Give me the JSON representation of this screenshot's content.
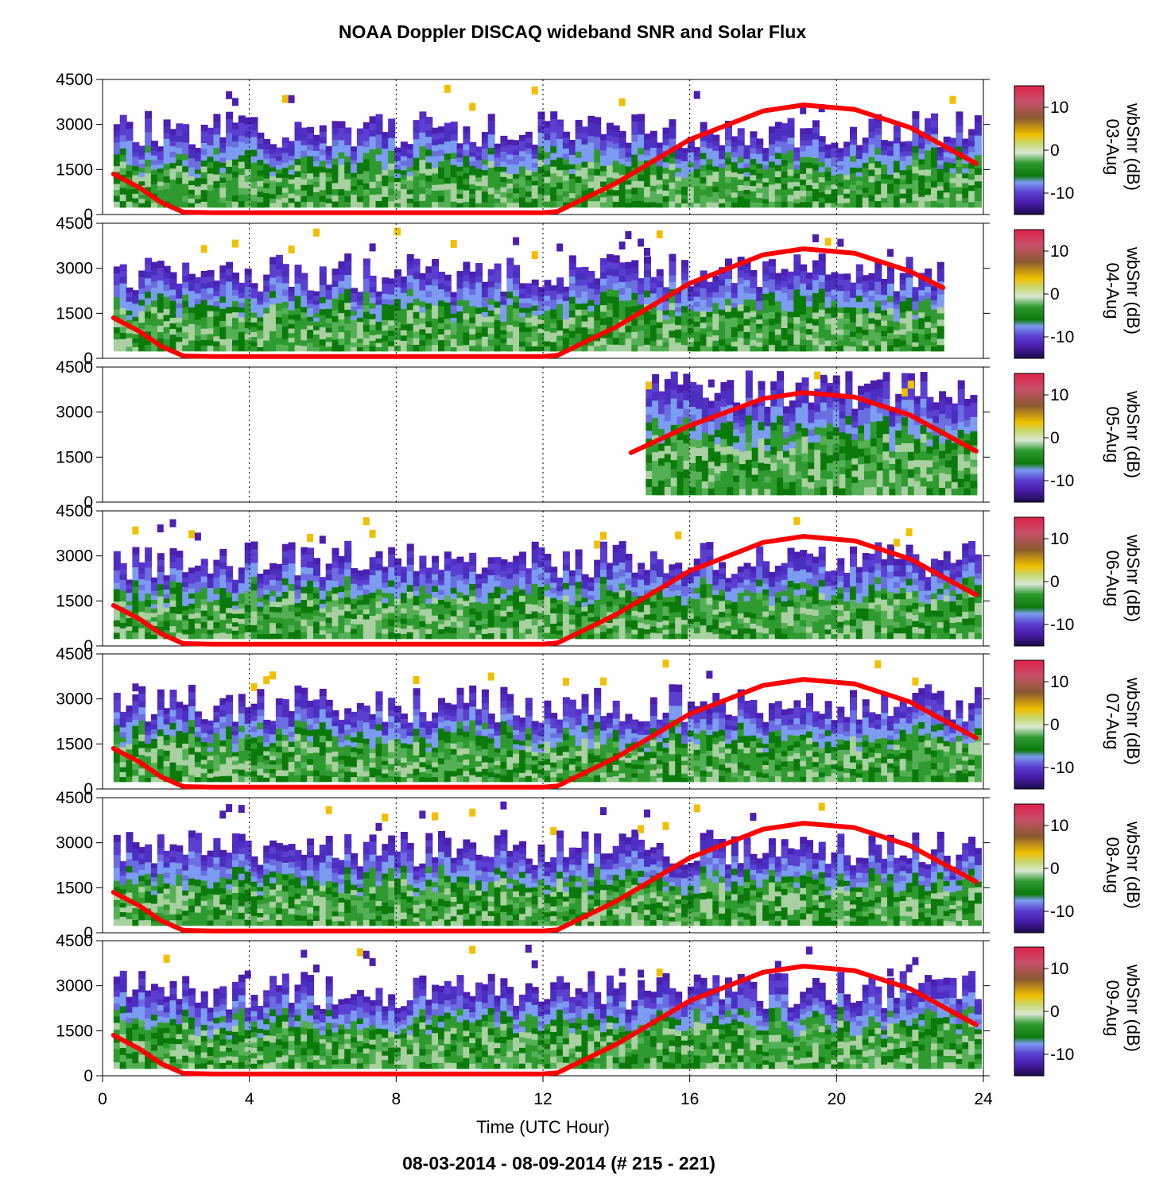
{
  "title": "NOAA Doppler DISCAQ wideband SNR and Solar Flux",
  "footer": "08-03-2014 - 08-09-2014   (# 215 - 221)",
  "xlabel": "Time (UTC Hour)",
  "colors": {
    "solar_flux_line": "#ff0000",
    "snr_scale": [
      "#1a0a4a",
      "#4b1fb0",
      "#5a3fd0",
      "#7b9cf0",
      "#0b7a0b",
      "#2f9a2f",
      "#d8e8d0",
      "#f0c000",
      "#8a5a30",
      "#e0204a"
    ]
  },
  "chart_data": {
    "type": "heatmap",
    "xlabel": "Time (UTC Hour)",
    "xlim": [
      0,
      24
    ],
    "x_ticks": [
      0,
      4,
      8,
      12,
      16,
      20,
      24
    ],
    "ylim": [
      0,
      4500
    ],
    "y_ticks": [
      0,
      1500,
      3000,
      4500
    ],
    "colorbar": {
      "label": "wbSnr (dB)",
      "ticks": [
        10,
        0,
        -10
      ],
      "range": [
        -15,
        15
      ]
    },
    "overlay_series": "Solar Flux",
    "panels": [
      {
        "date": "03-Aug",
        "data_start": 0.3,
        "data_end": 23.8,
        "solar_flux": [
          [
            0.3,
            1350
          ],
          [
            1.0,
            900
          ],
          [
            1.6,
            400
          ],
          [
            2.2,
            80
          ],
          [
            3,
            60
          ],
          [
            12,
            60
          ],
          [
            12.4,
            100
          ],
          [
            14,
            1050
          ],
          [
            16,
            2500
          ],
          [
            18,
            3450
          ],
          [
            19.1,
            3650
          ],
          [
            20.5,
            3500
          ],
          [
            22,
            2900
          ],
          [
            23.8,
            1700
          ]
        ]
      },
      {
        "date": "04-Aug",
        "data_start": 0.3,
        "data_end": 22.8,
        "solar_flux": [
          [
            0.3,
            1350
          ],
          [
            1.0,
            900
          ],
          [
            1.6,
            400
          ],
          [
            2.2,
            80
          ],
          [
            3,
            60
          ],
          [
            12,
            60
          ],
          [
            12.4,
            100
          ],
          [
            14,
            1050
          ],
          [
            16,
            2500
          ],
          [
            18,
            3450
          ],
          [
            19.1,
            3650
          ],
          [
            20.5,
            3500
          ],
          [
            22,
            2900
          ],
          [
            22.9,
            2350
          ]
        ]
      },
      {
        "date": "05-Aug",
        "data_start": 14.8,
        "data_end": 23.8,
        "solar_flux": [
          [
            14.4,
            1650
          ],
          [
            16,
            2550
          ],
          [
            18,
            3450
          ],
          [
            19.1,
            3650
          ],
          [
            20.5,
            3500
          ],
          [
            22,
            2900
          ],
          [
            23.8,
            1700
          ]
        ]
      },
      {
        "date": "06-Aug",
        "data_start": 0.3,
        "data_end": 23.8,
        "solar_flux": [
          [
            0.3,
            1350
          ],
          [
            1.0,
            900
          ],
          [
            1.6,
            400
          ],
          [
            2.2,
            80
          ],
          [
            3,
            60
          ],
          [
            12,
            60
          ],
          [
            12.4,
            100
          ],
          [
            14,
            1050
          ],
          [
            16,
            2500
          ],
          [
            18,
            3450
          ],
          [
            19.1,
            3650
          ],
          [
            20.5,
            3500
          ],
          [
            22,
            2900
          ],
          [
            23.8,
            1700
          ]
        ]
      },
      {
        "date": "07-Aug",
        "data_start": 0.3,
        "data_end": 23.8,
        "solar_flux": [
          [
            0.3,
            1350
          ],
          [
            1.0,
            900
          ],
          [
            1.6,
            400
          ],
          [
            2.2,
            80
          ],
          [
            3,
            60
          ],
          [
            12,
            60
          ],
          [
            12.4,
            100
          ],
          [
            14,
            1050
          ],
          [
            16,
            2500
          ],
          [
            18,
            3450
          ],
          [
            19.1,
            3650
          ],
          [
            20.5,
            3500
          ],
          [
            22,
            2900
          ],
          [
            23.8,
            1700
          ]
        ]
      },
      {
        "date": "08-Aug",
        "data_start": 0.3,
        "data_end": 23.8,
        "solar_flux": [
          [
            0.3,
            1350
          ],
          [
            1.0,
            900
          ],
          [
            1.6,
            400
          ],
          [
            2.2,
            80
          ],
          [
            3,
            60
          ],
          [
            12,
            60
          ],
          [
            12.4,
            100
          ],
          [
            14,
            1050
          ],
          [
            16,
            2500
          ],
          [
            18,
            3450
          ],
          [
            19.1,
            3650
          ],
          [
            20.5,
            3500
          ],
          [
            22,
            2900
          ],
          [
            23.8,
            1700
          ]
        ]
      },
      {
        "date": "09-Aug",
        "data_start": 0.3,
        "data_end": 23.8,
        "solar_flux": [
          [
            0.3,
            1350
          ],
          [
            1.0,
            900
          ],
          [
            1.6,
            400
          ],
          [
            2.2,
            80
          ],
          [
            3,
            60
          ],
          [
            12,
            60
          ],
          [
            12.4,
            100
          ],
          [
            14,
            1050
          ],
          [
            16,
            2500
          ],
          [
            18,
            3450
          ],
          [
            19.1,
            3650
          ],
          [
            20.5,
            3500
          ],
          [
            22,
            2900
          ],
          [
            23.8,
            1700
          ]
        ]
      }
    ]
  }
}
